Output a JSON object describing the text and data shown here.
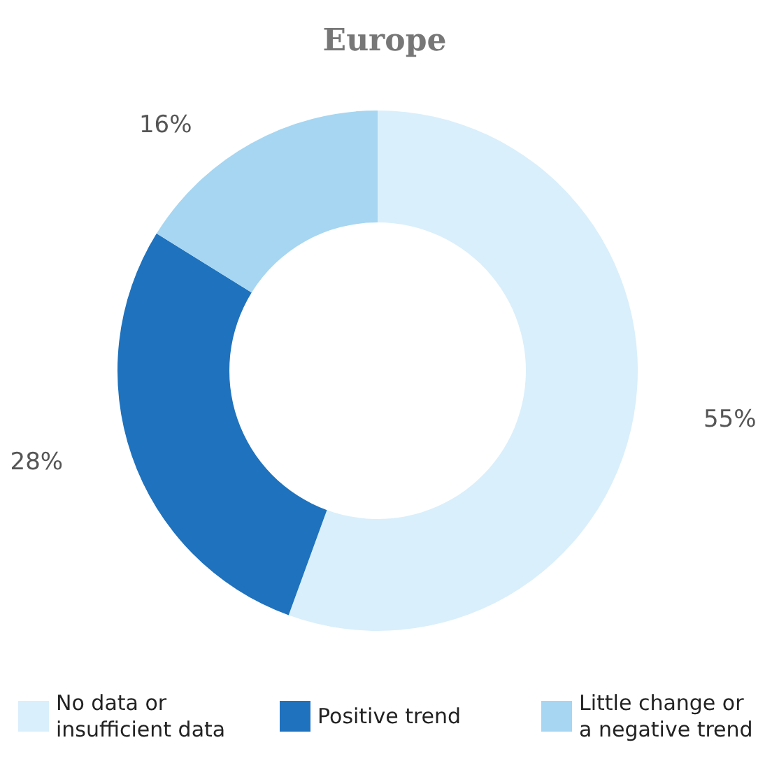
{
  "chart_data": {
    "type": "donut",
    "title": "Europe",
    "categories": [
      "No data or insufficient data",
      "Positive trend",
      "Little change or a negative trend"
    ],
    "values": [
      55,
      28,
      16
    ],
    "colors": [
      "#d9effb",
      "#1f72bd",
      "#a6d6f1"
    ],
    "value_labels": [
      "55%",
      "28%",
      "16%"
    ],
    "legend": "bottom"
  }
}
